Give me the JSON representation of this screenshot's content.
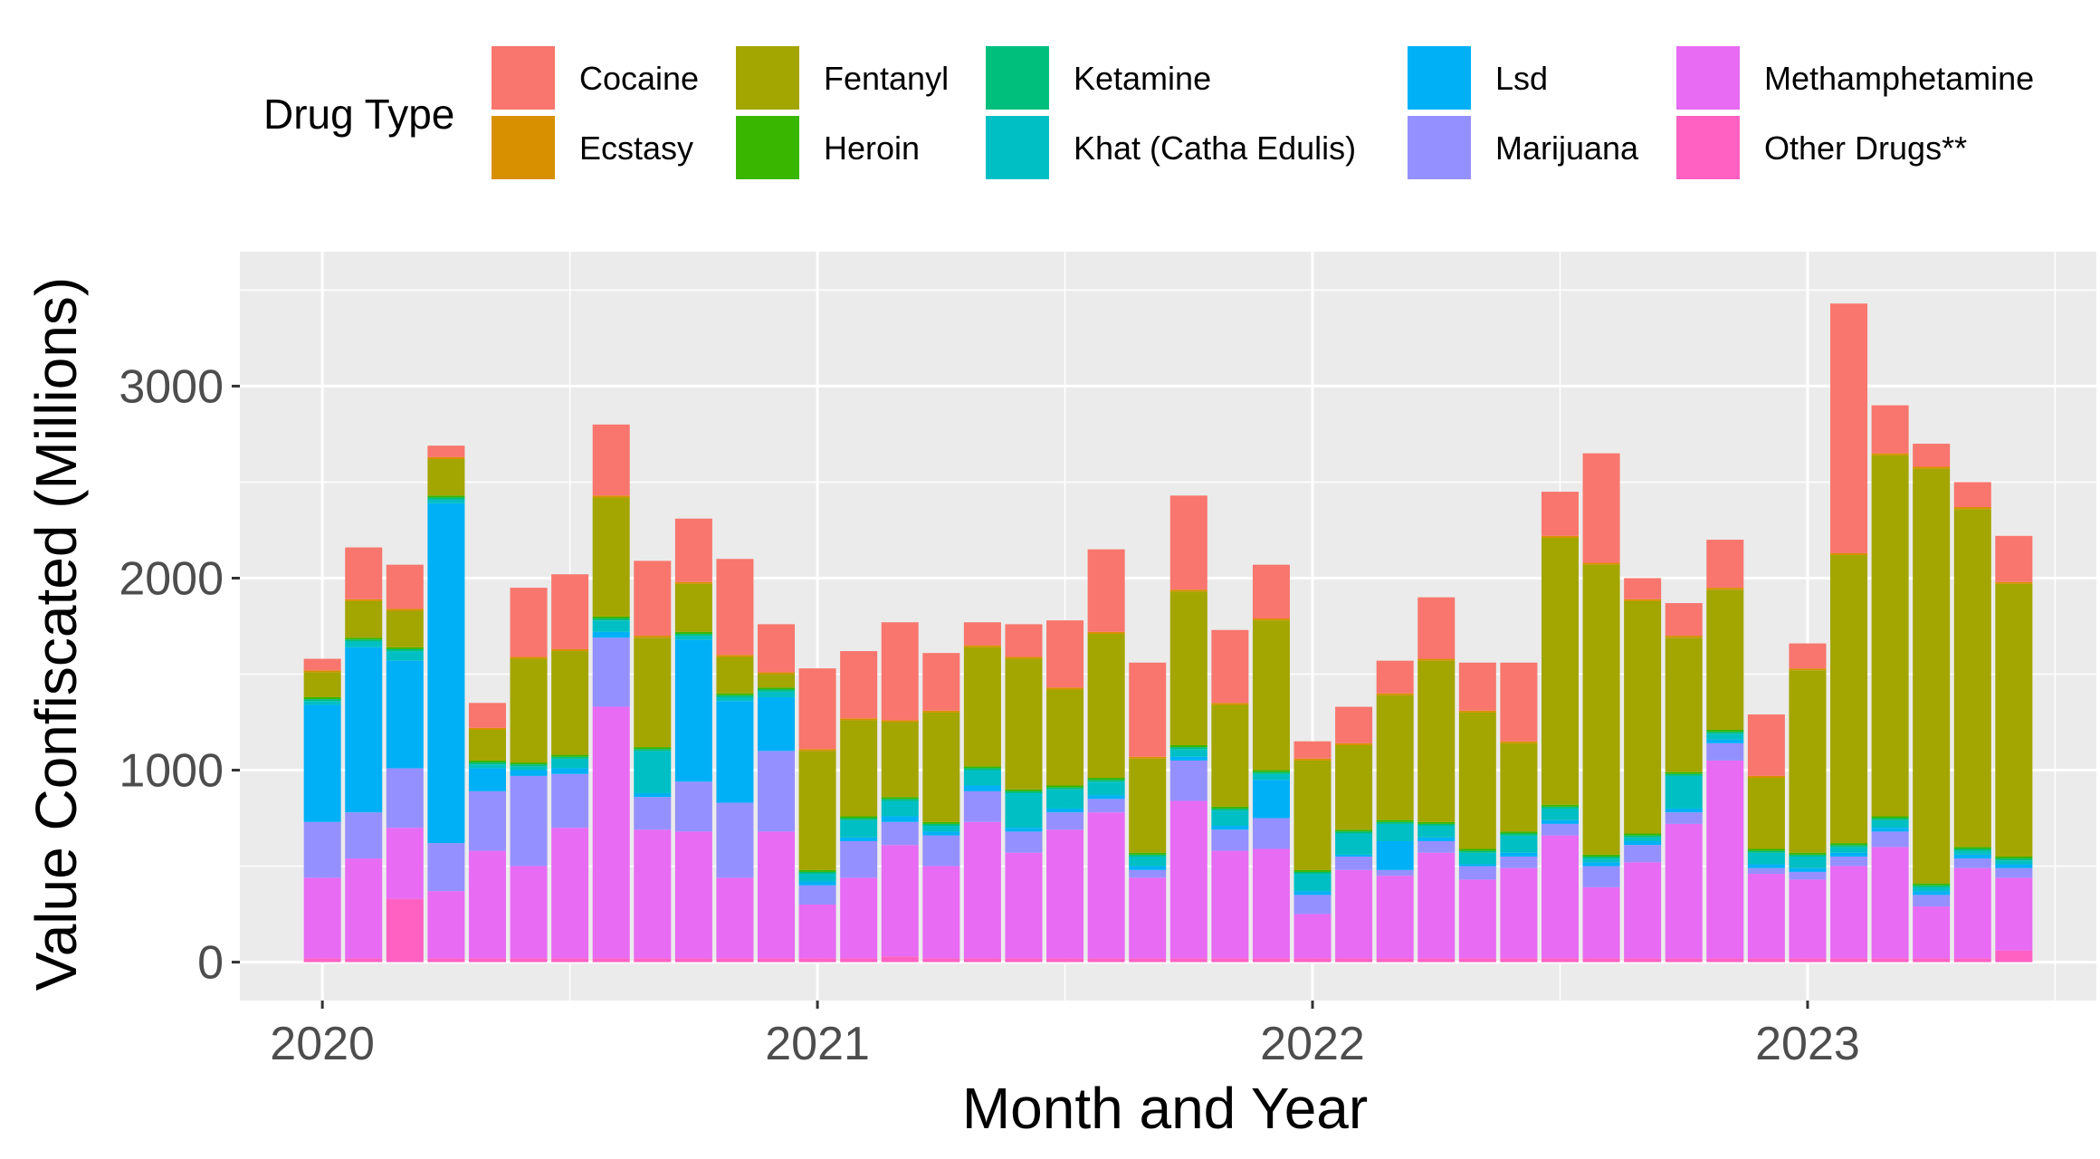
{
  "chart_data": {
    "type": "bar",
    "stacked": true,
    "xlabel": "Month and Year",
    "ylabel": "Value Confiscated (Millions)",
    "legend_title": "Drug Type",
    "legend_position": "top",
    "grid": true,
    "ylim": [
      -200,
      3700
    ],
    "y_ticks": [
      0,
      1000,
      2000,
      3000
    ],
    "x_ticks": [
      {
        "label": "2020",
        "date": "2020-01"
      },
      {
        "label": "2021",
        "date": "2021-01"
      },
      {
        "label": "2022",
        "date": "2022-01"
      },
      {
        "label": "2023",
        "date": "2023-01"
      }
    ],
    "x_range": [
      "2019-11",
      "2023-08"
    ],
    "categories": [
      "2020-01",
      "2020-02",
      "2020-03",
      "2020-04",
      "2020-05",
      "2020-06",
      "2020-07",
      "2020-08",
      "2020-09",
      "2020-10",
      "2020-11",
      "2020-12",
      "2021-01",
      "2021-02",
      "2021-03",
      "2021-04",
      "2021-05",
      "2021-06",
      "2021-07",
      "2021-08",
      "2021-09",
      "2021-10",
      "2021-11",
      "2021-12",
      "2022-01",
      "2022-02",
      "2022-03",
      "2022-04",
      "2022-05",
      "2022-06",
      "2022-07",
      "2022-08",
      "2022-09",
      "2022-10",
      "2022-11",
      "2022-12",
      "2023-01",
      "2023-02",
      "2023-03",
      "2023-04",
      "2023-05",
      "2023-06"
    ],
    "series": [
      {
        "name": "Other Drugs**",
        "color": "#FF61C3",
        "values": [
          20,
          20,
          330,
          20,
          20,
          20,
          20,
          20,
          20,
          20,
          20,
          20,
          20,
          20,
          30,
          20,
          20,
          20,
          20,
          20,
          20,
          20,
          20,
          20,
          20,
          20,
          20,
          20,
          20,
          20,
          20,
          20,
          20,
          20,
          20,
          20,
          20,
          20,
          20,
          20,
          20,
          60
        ]
      },
      {
        "name": "Methamphetamine",
        "color": "#E76BF3",
        "values": [
          420,
          520,
          370,
          350,
          560,
          480,
          680,
          1310,
          670,
          660,
          420,
          660,
          280,
          420,
          580,
          480,
          710,
          550,
          670,
          760,
          420,
          820,
          560,
          570,
          230,
          460,
          430,
          550,
          410,
          470,
          640,
          370,
          500,
          700,
          1030,
          440,
          410,
          480,
          580,
          270,
          470,
          380
        ]
      },
      {
        "name": "Marijuana",
        "color": "#9590FF",
        "values": [
          290,
          240,
          310,
          250,
          310,
          470,
          280,
          360,
          170,
          260,
          390,
          420,
          100,
          190,
          120,
          160,
          160,
          110,
          90,
          70,
          40,
          210,
          110,
          160,
          100,
          70,
          30,
          60,
          70,
          60,
          60,
          110,
          90,
          60,
          90,
          30,
          40,
          50,
          80,
          60,
          50,
          50
        ]
      },
      {
        "name": "Lsd",
        "color": "#00B0F6",
        "values": [
          610,
          860,
          560,
          1770,
          120,
          30,
          30,
          30,
          20,
          740,
          530,
          280,
          20,
          20,
          30,
          20,
          30,
          20,
          20,
          20,
          20,
          20,
          20,
          200,
          20,
          10,
          150,
          20,
          10,
          20,
          20,
          20,
          20,
          20,
          20,
          20,
          20,
          20,
          20,
          20,
          20,
          20
        ]
      },
      {
        "name": "Khat (Catha Edulis)",
        "color": "#00BFC4",
        "values": [
          20,
          30,
          50,
          20,
          20,
          20,
          50,
          60,
          220,
          20,
          20,
          30,
          40,
          90,
          80,
          30,
          80,
          180,
          100,
          70,
          50,
          40,
          80,
          30,
          90,
          110,
          90,
          60,
          60,
          90,
          60,
          20,
          20,
          170,
          30,
          60,
          60,
          30,
          40,
          20,
          20,
          20
        ]
      },
      {
        "name": "Ketamine",
        "color": "#00BF7D",
        "values": [
          10,
          10,
          10,
          10,
          10,
          10,
          10,
          10,
          10,
          10,
          10,
          10,
          10,
          10,
          10,
          10,
          10,
          10,
          10,
          10,
          10,
          10,
          10,
          10,
          10,
          10,
          10,
          10,
          10,
          10,
          10,
          10,
          10,
          10,
          10,
          10,
          10,
          10,
          10,
          10,
          10,
          10
        ]
      },
      {
        "name": "Heroin",
        "color": "#39B600",
        "values": [
          10,
          10,
          10,
          10,
          10,
          10,
          10,
          10,
          10,
          10,
          10,
          10,
          10,
          10,
          10,
          10,
          10,
          10,
          10,
          10,
          10,
          10,
          10,
          10,
          10,
          10,
          10,
          10,
          10,
          10,
          10,
          10,
          10,
          10,
          10,
          10,
          10,
          10,
          10,
          10,
          10,
          10
        ]
      },
      {
        "name": "Fentanyl",
        "color": "#A3A500",
        "values": [
          130,
          190,
          190,
          190,
          160,
          540,
          540,
          620,
          570,
          250,
          190,
          70,
          620,
          500,
          390,
          570,
          620,
          680,
          500,
          750,
          490,
          800,
          530,
          780,
          570,
          440,
          650,
          840,
          710,
          460,
          1390,
          1510,
          1210,
          700,
          730,
          370,
          950,
          1500,
          1880,
          2160,
          1760,
          1420
        ]
      },
      {
        "name": "Ecstasy",
        "color": "#D89000",
        "values": [
          10,
          10,
          10,
          10,
          10,
          10,
          10,
          10,
          10,
          10,
          10,
          10,
          10,
          10,
          10,
          10,
          10,
          10,
          10,
          10,
          10,
          10,
          10,
          10,
          10,
          10,
          10,
          10,
          10,
          10,
          10,
          10,
          10,
          10,
          10,
          10,
          10,
          10,
          10,
          10,
          10,
          10
        ]
      },
      {
        "name": "Cocaine",
        "color": "#F8766D",
        "values": [
          60,
          270,
          230,
          60,
          130,
          360,
          390,
          370,
          390,
          330,
          500,
          250,
          420,
          350,
          510,
          300,
          120,
          170,
          350,
          430,
          490,
          490,
          380,
          280,
          90,
          190,
          170,
          320,
          250,
          410,
          230,
          570,
          110,
          170,
          250,
          320,
          130,
          1300,
          250,
          120,
          130,
          240
        ]
      }
    ]
  }
}
